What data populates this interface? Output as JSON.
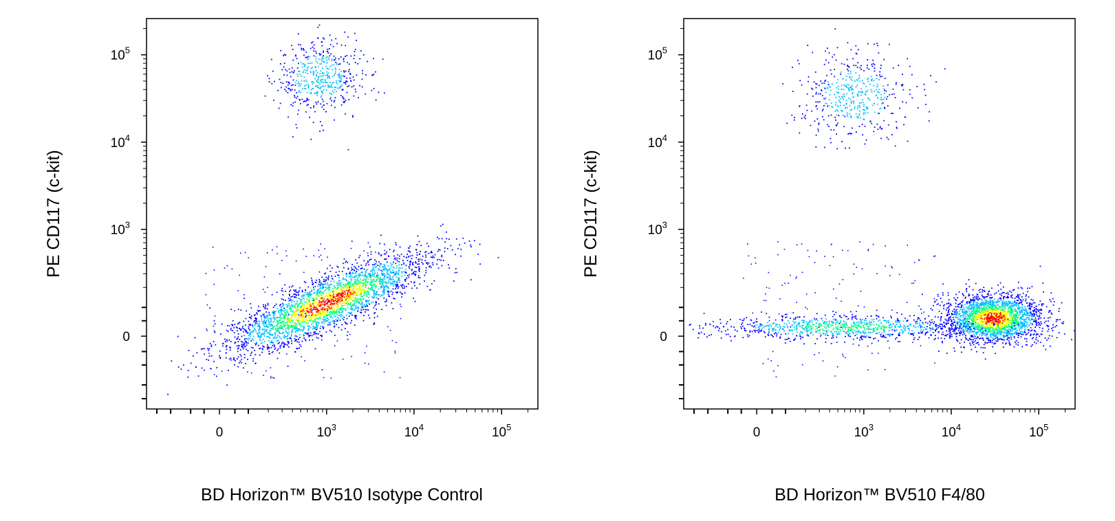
{
  "figure": {
    "panels": [
      {
        "xlabel": "BD Horizon™ BV510 Isotype Control",
        "ylabel": "PE CD117 (c-kit)"
      },
      {
        "xlabel": "BD Horizon™ BV510 F4/80",
        "ylabel": "PE CD117 (c-kit)"
      }
    ]
  },
  "chart_data": [
    {
      "type": "scatter",
      "style": "density-colored dot plot (flow cytometry, biexponential axes)",
      "xlabel": "BD Horizon™ BV510 Isotype Control",
      "ylabel": "PE CD117 (c-kit)",
      "xscale": "biexponential",
      "yscale": "biexponential",
      "x_ticks": [
        {
          "value": 0,
          "label": "0"
        },
        {
          "value": 1000,
          "label": "10",
          "exp": "3"
        },
        {
          "value": 10000,
          "label": "10",
          "exp": "4"
        },
        {
          "value": 100000,
          "label": "10",
          "exp": "5"
        }
      ],
      "y_ticks": [
        {
          "value": 0,
          "label": "0"
        },
        {
          "value": 1000,
          "label": "10",
          "exp": "3"
        },
        {
          "value": 10000,
          "label": "10",
          "exp": "4"
        },
        {
          "value": 100000,
          "label": "10",
          "exp": "5"
        }
      ],
      "xlim": [
        -400,
        260000
      ],
      "ylim": [
        -400,
        260000
      ],
      "density_colors": [
        "#0000ff",
        "#00bfff",
        "#00ff80",
        "#ffff00",
        "#ff0000"
      ],
      "populations": [
        {
          "x_center": 800,
          "y_center": 55000,
          "x_spread": 0.18,
          "y_spread": 0.16,
          "count": 520,
          "peak": 0.35,
          "angle": 0
        },
        {
          "x_center": 1000,
          "y_center": 120,
          "x_spread": 0.45,
          "y_spread": 0.1,
          "count": 2900,
          "peak": 1.0,
          "angle": 0.42
        }
      ]
    },
    {
      "type": "scatter",
      "style": "density-colored dot plot (flow cytometry, biexponential axes)",
      "xlabel": "BD Horizon™ BV510 F4/80",
      "ylabel": "PE CD117 (c-kit)",
      "xscale": "biexponential",
      "yscale": "biexponential",
      "x_ticks": [
        {
          "value": 0,
          "label": "0"
        },
        {
          "value": 1000,
          "label": "10",
          "exp": "3"
        },
        {
          "value": 10000,
          "label": "10",
          "exp": "4"
        },
        {
          "value": 100000,
          "label": "10",
          "exp": "5"
        }
      ],
      "y_ticks": [
        {
          "value": 0,
          "label": "0"
        },
        {
          "value": 1000,
          "label": "10",
          "exp": "3"
        },
        {
          "value": 10000,
          "label": "10",
          "exp": "4"
        },
        {
          "value": 100000,
          "label": "10",
          "exp": "5"
        }
      ],
      "xlim": [
        -400,
        260000
      ],
      "ylim": [
        -400,
        260000
      ],
      "density_colors": [
        "#0000ff",
        "#00bfff",
        "#00ff80",
        "#ffff00",
        "#ff0000"
      ],
      "populations": [
        {
          "x_center": 800,
          "y_center": 35000,
          "x_spread": 0.22,
          "y_spread": 0.18,
          "count": 480,
          "peak": 0.35,
          "angle": 0
        },
        {
          "x_center": 30000,
          "y_center": 60,
          "x_spread": 0.2,
          "y_spread": 0.1,
          "count": 2300,
          "peak": 1.0,
          "angle": 0
        },
        {
          "x_center": 600,
          "y_center": 30,
          "x_spread": 0.55,
          "y_spread": 0.05,
          "count": 900,
          "peak": 0.55,
          "angle": 0
        }
      ]
    }
  ]
}
